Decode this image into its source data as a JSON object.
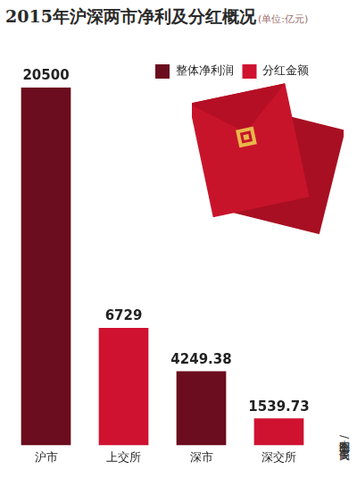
{
  "chart_data": {
    "type": "bar",
    "title": "2015年沪深两市净利及分红概况",
    "subtitle": "(单位:亿元)",
    "source": "本版制图/高俊夫",
    "categories": [
      "沪市",
      "上交所",
      "深市",
      "深交所"
    ],
    "series": [
      {
        "name": "整体净利润",
        "color": "#6b0d1e",
        "values": [
          20500,
          null,
          4249.38,
          null
        ]
      },
      {
        "name": "分红金额",
        "color": "#cf1230",
        "values": [
          null,
          6729,
          null,
          1539.73
        ]
      }
    ],
    "ylim": [
      0,
      20500
    ],
    "tick_labels": "x",
    "grid": false,
    "legend": "top-right",
    "data_labels": true
  }
}
